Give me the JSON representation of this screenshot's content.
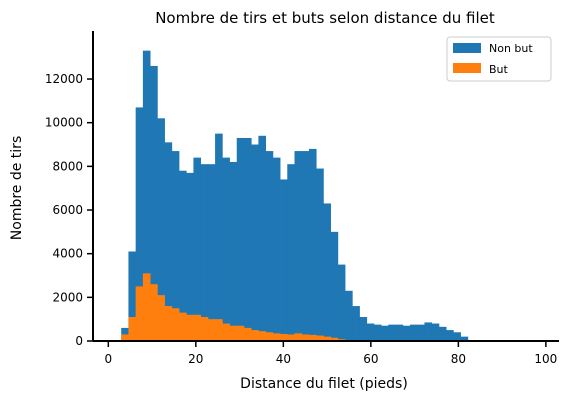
{
  "chart_data": {
    "type": "bar",
    "title": "Nombre de tirs et buts selon distance du filet",
    "xlabel": "Distance du filet (pieds)",
    "ylabel": "Nombre de tirs",
    "xlim": [
      -3.5,
      103
    ],
    "ylim": [
      0,
      14200
    ],
    "xticks": [
      0,
      20,
      40,
      60,
      80,
      100
    ],
    "yticks": [
      0,
      2000,
      4000,
      6000,
      8000,
      10000,
      12000
    ],
    "grid": false,
    "legend_position": "top-right",
    "bin_width": 1.65,
    "bin_start": 2.95,
    "series": [
      {
        "name": "Non but",
        "color": "#1f77b4",
        "values": [
          600,
          4100,
          10700,
          13300,
          12600,
          10200,
          9100,
          8700,
          7800,
          7700,
          8400,
          8100,
          8100,
          9500,
          8400,
          8200,
          9300,
          9300,
          9000,
          9400,
          8700,
          8400,
          7400,
          8100,
          8700,
          8700,
          8800,
          7900,
          6300,
          5000,
          3500,
          2300,
          1600,
          1100,
          800,
          750,
          700,
          750,
          750,
          700,
          750,
          750,
          850,
          800,
          650,
          500,
          400,
          200
        ]
      },
      {
        "name": "But",
        "color": "#ff7f0e",
        "values": [
          300,
          1100,
          2500,
          3100,
          2600,
          2100,
          1600,
          1500,
          1300,
          1200,
          1200,
          1100,
          1000,
          1000,
          800,
          700,
          700,
          600,
          500,
          450,
          400,
          350,
          320,
          300,
          350,
          300,
          280,
          250,
          200,
          150,
          80,
          40,
          20,
          10,
          10,
          10,
          10,
          10,
          10,
          10,
          10,
          10,
          10,
          10,
          10,
          10,
          10,
          10
        ]
      }
    ]
  }
}
